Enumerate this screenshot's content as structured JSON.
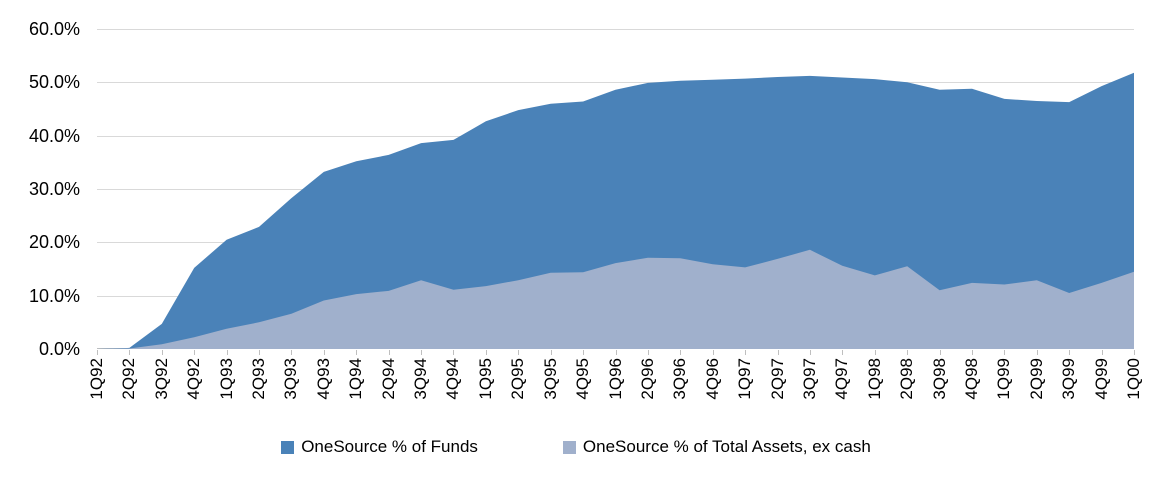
{
  "chart_data": {
    "type": "area",
    "title": "",
    "xlabel": "",
    "ylabel": "",
    "ylim": [
      0,
      60
    ],
    "grid": true,
    "legend_position": "bottom",
    "y_tick_labels": [
      "0.0%",
      "10.0%",
      "20.0%",
      "30.0%",
      "40.0%",
      "50.0%",
      "60.0%"
    ],
    "categories": [
      "1Q92",
      "2Q92",
      "3Q92",
      "4Q92",
      "1Q93",
      "2Q93",
      "3Q93",
      "4Q93",
      "1Q94",
      "2Q94",
      "3Q94",
      "4Q94",
      "1Q95",
      "2Q95",
      "3Q95",
      "4Q95",
      "1Q96",
      "2Q96",
      "3Q96",
      "4Q96",
      "1Q97",
      "2Q97",
      "3Q97",
      "4Q97",
      "1Q98",
      "2Q98",
      "3Q98",
      "4Q98",
      "1Q99",
      "2Q99",
      "3Q99",
      "4Q99",
      "1Q00"
    ],
    "series": [
      {
        "name": "OneSource % of Funds",
        "color": "#4a82b8",
        "values": [
          0.0,
          0.2,
          4.7,
          15.2,
          20.5,
          22.9,
          28.3,
          33.2,
          35.2,
          36.4,
          38.6,
          39.2,
          42.7,
          44.8,
          46.0,
          46.4,
          48.6,
          49.9,
          50.3,
          50.5,
          50.7,
          51.0,
          51.2,
          50.9,
          50.6,
          50.0,
          48.6,
          48.8,
          46.9,
          46.5,
          46.3,
          49.3,
          51.8
        ]
      },
      {
        "name": "OneSource % of Total Assets, ex cash",
        "color": "#a0b0cc",
        "values": [
          0.0,
          0.1,
          0.9,
          2.2,
          3.8,
          5.0,
          6.6,
          9.1,
          10.3,
          10.9,
          12.9,
          11.1,
          11.8,
          12.9,
          14.3,
          14.4,
          16.1,
          17.1,
          17.0,
          15.9,
          15.3,
          16.9,
          18.6,
          15.6,
          13.8,
          15.5,
          11.0,
          12.4,
          12.1,
          12.9,
          10.5,
          12.4,
          14.5
        ]
      }
    ],
    "colors": {
      "gridline": "#d9d9d9",
      "axis_line": "#bfbfbf",
      "text": "#000000",
      "background": "#ffffff"
    }
  }
}
